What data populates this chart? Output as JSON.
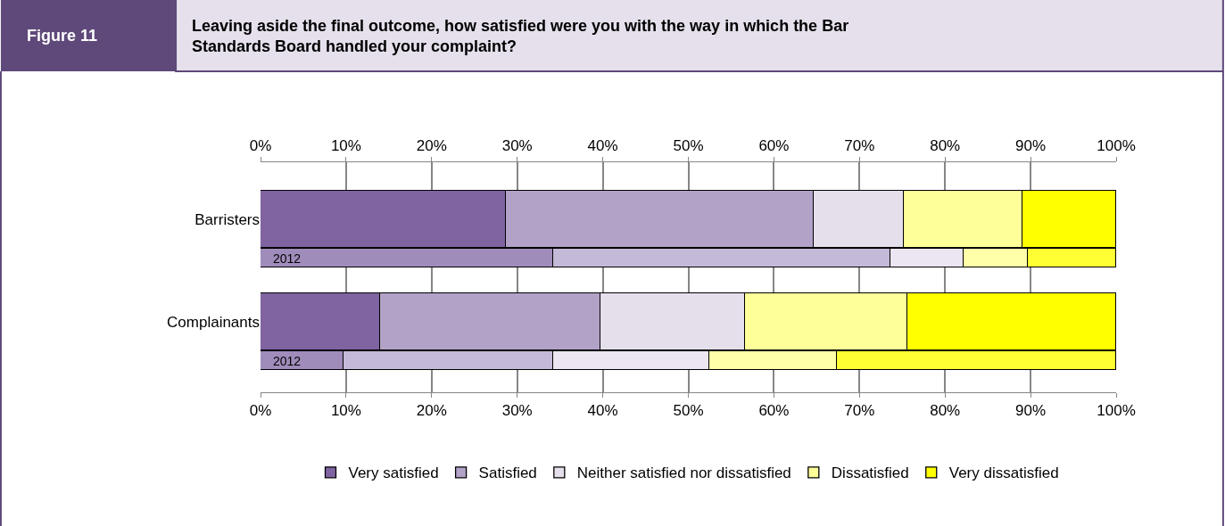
{
  "chart_data": {
    "type": "bar",
    "orientation": "horizontal",
    "stacked": true,
    "title": "Leaving aside the final outcome, how satisfied were you with the way in which the Bar Standards Board handled your complaint?",
    "subtitle": "Figure 11",
    "categories": [
      "Barristers",
      null,
      "Complainants",
      null
    ],
    "series": [
      {
        "name": "Very satisfied",
        "color": "#8064a2",
        "colors": [
          "#8064a2",
          "#a08cbb",
          "#8064a2",
          "#a08cbb"
        ],
        "values": [
          28.7,
          34.2,
          14.0,
          9.7
        ]
      },
      {
        "name": "Satisfied",
        "color": "#b2a2c7",
        "colors": [
          "#b2a2c7",
          "#c5b9d8",
          "#b2a2c7",
          "#c5b9d8"
        ],
        "values": [
          35.9,
          39.4,
          25.7,
          24.5
        ]
      },
      {
        "name": "Neither satisfied nor dissatisfied",
        "color": "#e5dfec",
        "colors": [
          "#e5dfec",
          "#ebe6f1",
          "#e5dfec",
          "#ebe6f1"
        ],
        "values": [
          10.6,
          8.6,
          16.9,
          18.3
        ]
      },
      {
        "name": "Dissatisfied",
        "color": "#ffff99",
        "colors": [
          "#ffff99",
          "#ffffaa",
          "#ffff99",
          "#ffffaa"
        ],
        "values": [
          13.9,
          7.5,
          19.0,
          14.9
        ]
      },
      {
        "name": "Very dissatisfied",
        "color": "#ffff00",
        "colors": [
          "#ffff00",
          "#ffff33",
          "#ffff00",
          "#ffff33"
        ],
        "values": [
          10.9,
          10.3,
          24.4,
          32.6
        ]
      }
    ],
    "annotations": [
      "2012",
      "2012"
    ],
    "xlim": [
      0,
      100
    ],
    "xticks": [
      {
        "value": 0,
        "label": "0%"
      },
      {
        "value": 10,
        "label": "10%"
      },
      {
        "value": 20,
        "label": "20%"
      },
      {
        "value": 30,
        "label": "30%"
      },
      {
        "value": 40,
        "label": "40%"
      },
      {
        "value": 50,
        "label": "50%"
      },
      {
        "value": 60,
        "label": "60%"
      },
      {
        "value": 70,
        "label": "70%"
      },
      {
        "value": 80,
        "label": "80%"
      },
      {
        "value": 90,
        "label": "90%"
      },
      {
        "value": 100,
        "label": "100%"
      }
    ],
    "x2lim": [
      0,
      100
    ],
    "x2ticks": [
      {
        "value": 0,
        "label": "0%"
      },
      {
        "value": 10,
        "label": "10%"
      },
      {
        "value": 20,
        "label": "20%"
      },
      {
        "value": 30,
        "label": "30%"
      },
      {
        "value": 40,
        "label": "40%"
      },
      {
        "value": 50,
        "label": "50%"
      },
      {
        "value": 60,
        "label": "60%"
      },
      {
        "value": 70,
        "label": "70%"
      },
      {
        "value": 80,
        "label": "80%"
      },
      {
        "value": 90,
        "label": "90%"
      },
      {
        "value": 100,
        "label": "100%"
      }
    ],
    "grid": "x",
    "legend": "bottom"
  }
}
